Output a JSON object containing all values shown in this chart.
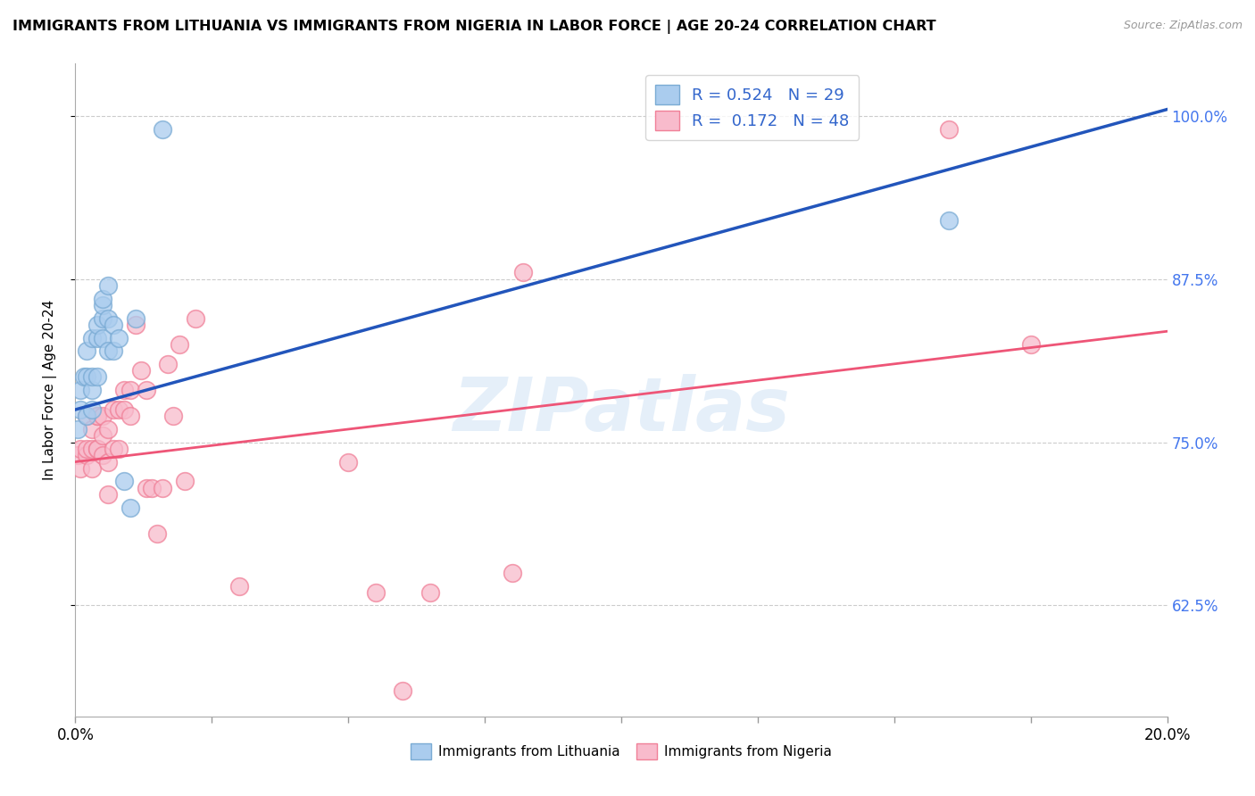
{
  "title": "IMMIGRANTS FROM LITHUANIA VS IMMIGRANTS FROM NIGERIA IN LABOR FORCE | AGE 20-24 CORRELATION CHART",
  "source": "Source: ZipAtlas.com",
  "ylabel": "In Labor Force | Age 20-24",
  "ytick_labels": [
    "62.5%",
    "75.0%",
    "87.5%",
    "100.0%"
  ],
  "ytick_values": [
    0.625,
    0.75,
    0.875,
    1.0
  ],
  "xlim": [
    0.0,
    0.2
  ],
  "ylim": [
    0.54,
    1.04
  ],
  "watermark": "ZIPatlas",
  "lithuania_color": "#7AABD4",
  "lithuania_color_fill": "#AACCEE",
  "nigeria_color": "#F08098",
  "nigeria_color_fill": "#F8BBCC",
  "line_lithuania": "#2255BB",
  "line_nigeria": "#EE5577",
  "R_lithuania": 0.524,
  "N_lithuania": 29,
  "R_nigeria": 0.172,
  "N_nigeria": 48,
  "legend_label_lithuania": "Immigrants from Lithuania",
  "legend_label_nigeria": "Immigrants from Nigeria",
  "lithuania_x": [
    0.0005,
    0.001,
    0.001,
    0.0015,
    0.002,
    0.002,
    0.002,
    0.003,
    0.003,
    0.003,
    0.003,
    0.004,
    0.004,
    0.004,
    0.005,
    0.005,
    0.005,
    0.005,
    0.006,
    0.006,
    0.006,
    0.007,
    0.007,
    0.008,
    0.009,
    0.01,
    0.011,
    0.016,
    0.16
  ],
  "lithuania_y": [
    0.76,
    0.775,
    0.79,
    0.8,
    0.77,
    0.8,
    0.82,
    0.775,
    0.79,
    0.8,
    0.83,
    0.8,
    0.83,
    0.84,
    0.83,
    0.845,
    0.855,
    0.86,
    0.82,
    0.845,
    0.87,
    0.82,
    0.84,
    0.83,
    0.72,
    0.7,
    0.845,
    0.99,
    0.92
  ],
  "nigeria_x": [
    0.0005,
    0.001,
    0.001,
    0.002,
    0.002,
    0.002,
    0.003,
    0.003,
    0.003,
    0.004,
    0.004,
    0.004,
    0.004,
    0.005,
    0.005,
    0.005,
    0.006,
    0.006,
    0.006,
    0.007,
    0.007,
    0.008,
    0.008,
    0.009,
    0.009,
    0.01,
    0.01,
    0.011,
    0.012,
    0.013,
    0.013,
    0.014,
    0.015,
    0.016,
    0.017,
    0.018,
    0.019,
    0.02,
    0.022,
    0.03,
    0.05,
    0.055,
    0.06,
    0.065,
    0.08,
    0.082,
    0.16,
    0.175
  ],
  "nigeria_y": [
    0.74,
    0.73,
    0.745,
    0.74,
    0.745,
    0.77,
    0.73,
    0.745,
    0.76,
    0.745,
    0.77,
    0.745,
    0.77,
    0.74,
    0.755,
    0.77,
    0.71,
    0.735,
    0.76,
    0.745,
    0.775,
    0.745,
    0.775,
    0.775,
    0.79,
    0.77,
    0.79,
    0.84,
    0.805,
    0.715,
    0.79,
    0.715,
    0.68,
    0.715,
    0.81,
    0.77,
    0.825,
    0.72,
    0.845,
    0.64,
    0.735,
    0.635,
    0.56,
    0.635,
    0.65,
    0.88,
    0.99,
    0.825
  ],
  "line_lith_x0": 0.0,
  "line_lith_y0": 0.775,
  "line_lith_x1": 0.2,
  "line_lith_y1": 1.005,
  "line_nig_x0": 0.0,
  "line_nig_y0": 0.735,
  "line_nig_x1": 0.2,
  "line_nig_y1": 0.835
}
